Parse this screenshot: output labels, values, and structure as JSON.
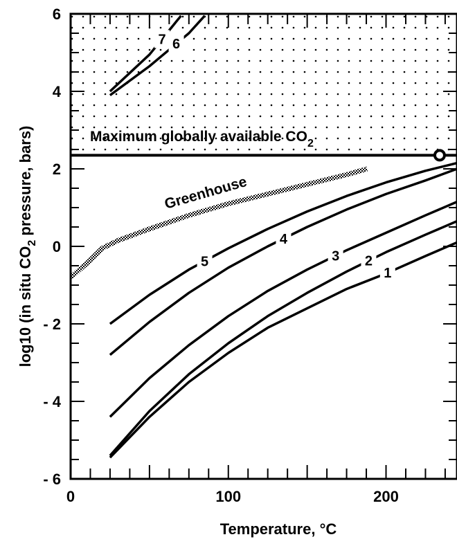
{
  "chart_data": {
    "type": "line",
    "xlabel": "Temperature,  °C",
    "ylabel": "log10  (in situ  CO",
    "ylabel_sub": "2",
    "ylabel_tail": "  pressure,  bars)",
    "xlim": [
      0,
      245
    ],
    "ylim": [
      -6,
      6
    ],
    "x_ticks": [
      0,
      100,
      200
    ],
    "x_tick_labels": [
      "0",
      "100",
      "200"
    ],
    "y_ticks": [
      -6,
      -4,
      -2,
      0,
      2,
      4,
      6
    ],
    "y_tick_labels": [
      "- 6",
      "- 4",
      "- 2",
      "0",
      "2",
      "4",
      "6"
    ],
    "series": [
      {
        "name": "1",
        "x": [
          25,
          50,
          75,
          100,
          125,
          150,
          175,
          200,
          225,
          245
        ],
        "y": [
          -5.45,
          -4.4,
          -3.5,
          -2.75,
          -2.1,
          -1.6,
          -1.1,
          -0.7,
          -0.25,
          0.1
        ]
      },
      {
        "name": "2",
        "x": [
          25,
          50,
          75,
          100,
          125,
          150,
          175,
          200,
          225,
          245
        ],
        "y": [
          -5.4,
          -4.25,
          -3.3,
          -2.5,
          -1.8,
          -1.2,
          -0.65,
          -0.15,
          0.3,
          0.65
        ]
      },
      {
        "name": "3",
        "x": [
          25,
          50,
          75,
          100,
          125,
          150,
          175,
          200,
          225,
          245
        ],
        "y": [
          -4.4,
          -3.4,
          -2.55,
          -1.8,
          -1.15,
          -0.6,
          -0.1,
          0.35,
          0.8,
          1.15
        ]
      },
      {
        "name": "4",
        "x": [
          25,
          50,
          75,
          100,
          125,
          150,
          175,
          200,
          225,
          245
        ],
        "y": [
          -2.8,
          -1.95,
          -1.2,
          -0.55,
          0.0,
          0.5,
          0.95,
          1.35,
          1.7,
          2.0
        ]
      },
      {
        "name": "5",
        "x": [
          25,
          50,
          75,
          100,
          125,
          150,
          175,
          200,
          225,
          245
        ],
        "y": [
          -2.0,
          -1.25,
          -0.6,
          -0.05,
          0.45,
          0.9,
          1.3,
          1.65,
          1.95,
          2.15
        ]
      },
      {
        "name": "6",
        "x": [
          25,
          50,
          75,
          85
        ],
        "y": [
          3.9,
          4.65,
          5.5,
          5.95
        ]
      },
      {
        "name": "7",
        "x": [
          25,
          50,
          70
        ],
        "y": [
          4.0,
          4.95,
          5.95
        ]
      }
    ],
    "greenhouse": {
      "label": "Greenhouse",
      "x": [
        0,
        10,
        20,
        30,
        50,
        75,
        100,
        125,
        150,
        175,
        188
      ],
      "y": [
        -0.8,
        -0.45,
        -0.05,
        0.15,
        0.45,
        0.8,
        1.1,
        1.35,
        1.6,
        1.85,
        2.0
      ]
    },
    "max_co2": {
      "label": "Maximum  globally  available  CO",
      "label_sub": "2",
      "y": 2.35,
      "marker_x": 234
    },
    "grid": false,
    "dotted_region": {
      "y_from": 2.35,
      "y_to": 6
    }
  }
}
